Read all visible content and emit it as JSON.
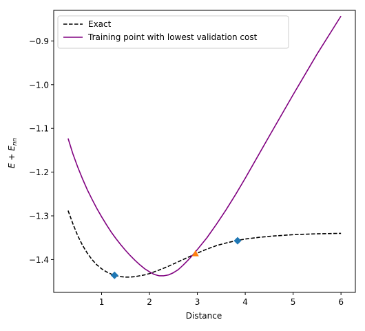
{
  "chart_data": {
    "type": "line",
    "xlabel": "Distance",
    "ylabel_main": "E + E",
    "ylabel_sub": "nn",
    "xlim": [
      0.0,
      6.3
    ],
    "ylim": [
      -1.475,
      -0.83
    ],
    "xticks": [
      1,
      2,
      3,
      4,
      5,
      6
    ],
    "yticks": [
      -1.4,
      -1.3,
      -1.2,
      -1.1,
      -1.0,
      -0.9
    ],
    "ytick_labels": [
      "−1.4",
      "−1.3",
      "−1.2",
      "−1.1",
      "−1.0",
      "−0.9"
    ],
    "legend_position": "top-left",
    "series": [
      {
        "name": "Exact",
        "color": "#000000",
        "dash": "dashed",
        "x": [
          0.3,
          0.4,
          0.5,
          0.6,
          0.7,
          0.8,
          0.9,
          1.0,
          1.1,
          1.2,
          1.3,
          1.4,
          1.5,
          1.6,
          1.7,
          1.8,
          1.9,
          2.0,
          2.2,
          2.4,
          2.6,
          2.8,
          3.0,
          3.2,
          3.4,
          3.6,
          3.8,
          4.0,
          4.3,
          4.6,
          5.0,
          5.5,
          6.0
        ],
        "y": [
          -1.288,
          -1.318,
          -1.345,
          -1.367,
          -1.385,
          -1.4,
          -1.412,
          -1.421,
          -1.428,
          -1.433,
          -1.437,
          -1.439,
          -1.44,
          -1.44,
          -1.439,
          -1.437,
          -1.435,
          -1.432,
          -1.424,
          -1.415,
          -1.405,
          -1.395,
          -1.385,
          -1.376,
          -1.368,
          -1.362,
          -1.357,
          -1.353,
          -1.349,
          -1.346,
          -1.343,
          -1.341,
          -1.34
        ]
      },
      {
        "name": "Training point with lowest validation cost",
        "color": "#800080",
        "dash": "solid",
        "x": [
          0.3,
          0.4,
          0.5,
          0.6,
          0.7,
          0.8,
          0.9,
          1.0,
          1.1,
          1.2,
          1.3,
          1.4,
          1.5,
          1.6,
          1.7,
          1.8,
          1.9,
          2.0,
          2.1,
          2.2,
          2.3,
          2.4,
          2.5,
          2.6,
          2.7,
          2.8,
          2.9,
          3.0,
          3.2,
          3.4,
          3.6,
          3.8,
          4.0,
          4.5,
          5.0,
          5.5,
          6.0
        ],
        "y": [
          -1.123,
          -1.158,
          -1.188,
          -1.215,
          -1.24,
          -1.262,
          -1.283,
          -1.302,
          -1.32,
          -1.337,
          -1.352,
          -1.366,
          -1.379,
          -1.391,
          -1.402,
          -1.412,
          -1.421,
          -1.428,
          -1.434,
          -1.437,
          -1.437,
          -1.435,
          -1.43,
          -1.423,
          -1.413,
          -1.402,
          -1.39,
          -1.377,
          -1.35,
          -1.319,
          -1.286,
          -1.251,
          -1.214,
          -1.118,
          -1.023,
          -0.93,
          -0.843
        ]
      }
    ],
    "markers": [
      {
        "x": 1.27,
        "y": -1.436,
        "shape": "diamond",
        "color": "#1f77b4"
      },
      {
        "x": 3.84,
        "y": -1.357,
        "shape": "diamond",
        "color": "#1f77b4"
      },
      {
        "x": 2.96,
        "y": -1.386,
        "shape": "triangle",
        "color": "#ff7f0e"
      }
    ]
  }
}
